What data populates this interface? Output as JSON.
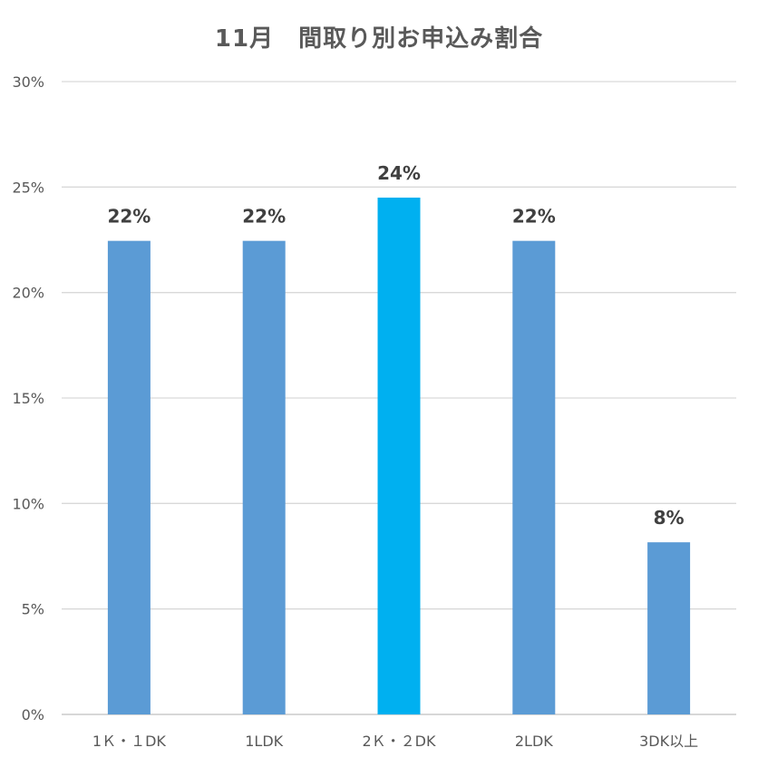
{
  "chart_data": {
    "type": "bar",
    "title": "11月　間取り別お申込み割合",
    "categories": [
      "1Ｋ・１DK",
      "1LDK",
      "2Ｋ・２DK",
      "2LDK",
      "3DK以上"
    ],
    "values": [
      22.45,
      22.45,
      24.5,
      22.45,
      8.16
    ],
    "data_labels": [
      "22%",
      "22%",
      "24%",
      "22%",
      "8%"
    ],
    "ylim": [
      0,
      30
    ],
    "yticks": [
      0,
      5,
      10,
      15,
      20,
      25,
      30
    ],
    "ytick_labels": [
      "0%",
      "5%",
      "10%",
      "15%",
      "20%",
      "25%",
      "30%"
    ],
    "xlabel": "",
    "ylabel": "",
    "grid": true,
    "legend": "none",
    "colors": {
      "default": "#5B9BD5",
      "highlight": "#00B0F0",
      "highlight_index": 2,
      "grid": "#D9D9D9",
      "axis": "#BFBFBF"
    }
  }
}
